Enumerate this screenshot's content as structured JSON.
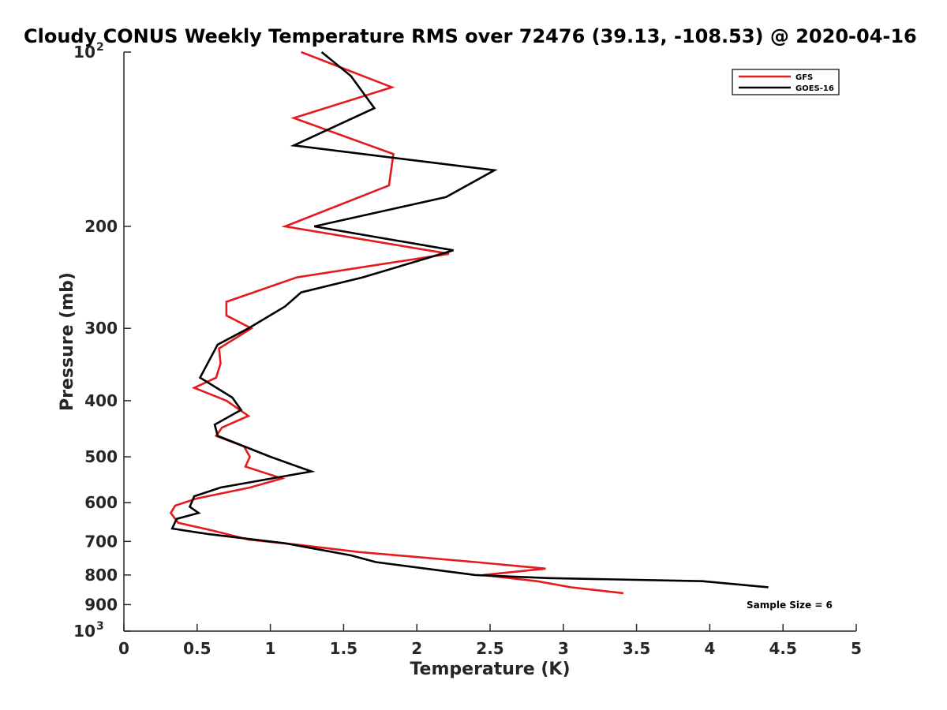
{
  "chart_data": {
    "type": "line",
    "title": "Cloudy CONUS Weekly Temperature RMS over 72476 (39.13, -108.53) @ 2020-04-16",
    "xlabel": "Temperature (K)",
    "ylabel": "Pressure (mb)",
    "xlim": [
      0,
      5
    ],
    "ylim": [
      100,
      1000
    ],
    "yscale": "log",
    "y_reversed": true,
    "x_ticks": [
      "0",
      "0.5",
      "1",
      "1.5",
      "2",
      "2.5",
      "3",
      "3.5",
      "4",
      "4.5",
      "5"
    ],
    "y_ticks": [
      {
        "value": 100,
        "label": "10",
        "sup": "2"
      },
      {
        "value": 200,
        "label": "200",
        "sup": ""
      },
      {
        "value": 300,
        "label": "300",
        "sup": ""
      },
      {
        "value": 400,
        "label": "400",
        "sup": ""
      },
      {
        "value": 500,
        "label": "500",
        "sup": ""
      },
      {
        "value": 600,
        "label": "600",
        "sup": ""
      },
      {
        "value": 700,
        "label": "700",
        "sup": ""
      },
      {
        "value": 800,
        "label": "800",
        "sup": ""
      },
      {
        "value": 900,
        "label": "900",
        "sup": ""
      },
      {
        "value": 1000,
        "label": "10",
        "sup": "3"
      }
    ],
    "grid": false,
    "legend_position": "top-right",
    "annotation": "Sample Size = 6",
    "series": [
      {
        "name": "GFS",
        "color": "#e41a1c",
        "points": [
          [
            1.21,
            100
          ],
          [
            1.83,
            115
          ],
          [
            1.16,
            130
          ],
          [
            1.84,
            150
          ],
          [
            1.81,
            170
          ],
          [
            1.1,
            200
          ],
          [
            2.22,
            223
          ],
          [
            1.18,
            245
          ],
          [
            0.7,
            270
          ],
          [
            0.7,
            285
          ],
          [
            0.87,
            300
          ],
          [
            0.65,
            325
          ],
          [
            0.66,
            345
          ],
          [
            0.63,
            365
          ],
          [
            0.48,
            380
          ],
          [
            0.7,
            400
          ],
          [
            0.85,
            425
          ],
          [
            0.67,
            445
          ],
          [
            0.63,
            460
          ],
          [
            0.82,
            480
          ],
          [
            0.86,
            500
          ],
          [
            0.83,
            520
          ],
          [
            1.08,
            545
          ],
          [
            0.86,
            565
          ],
          [
            0.5,
            590
          ],
          [
            0.35,
            607
          ],
          [
            0.32,
            625
          ],
          [
            0.37,
            650
          ],
          [
            0.6,
            670
          ],
          [
            0.85,
            695
          ],
          [
            1.2,
            710
          ],
          [
            1.6,
            730
          ],
          [
            2.4,
            760
          ],
          [
            2.88,
            780
          ],
          [
            2.45,
            800
          ],
          [
            2.82,
            820
          ],
          [
            3.05,
            840
          ],
          [
            3.41,
            860
          ]
        ]
      },
      {
        "name": "GOES-16",
        "color": "#000000",
        "points": [
          [
            1.35,
            100
          ],
          [
            1.55,
            110
          ],
          [
            1.71,
            125
          ],
          [
            1.16,
            145
          ],
          [
            2.53,
            160
          ],
          [
            2.2,
            178
          ],
          [
            1.3,
            200
          ],
          [
            2.25,
            220
          ],
          [
            1.63,
            245
          ],
          [
            1.21,
            260
          ],
          [
            1.1,
            275
          ],
          [
            0.85,
            300
          ],
          [
            0.64,
            320
          ],
          [
            0.52,
            365
          ],
          [
            0.74,
            395
          ],
          [
            0.8,
            415
          ],
          [
            0.62,
            440
          ],
          [
            0.64,
            460
          ],
          [
            1.0,
            500
          ],
          [
            1.28,
            530
          ],
          [
            0.66,
            565
          ],
          [
            0.48,
            585
          ],
          [
            0.45,
            610
          ],
          [
            0.51,
            625
          ],
          [
            0.36,
            640
          ],
          [
            0.33,
            665
          ],
          [
            0.58,
            680
          ],
          [
            1.1,
            705
          ],
          [
            1.55,
            740
          ],
          [
            1.72,
            760
          ],
          [
            2.4,
            800
          ],
          [
            2.9,
            810
          ],
          [
            3.95,
            820
          ],
          [
            4.4,
            840
          ]
        ]
      }
    ]
  }
}
